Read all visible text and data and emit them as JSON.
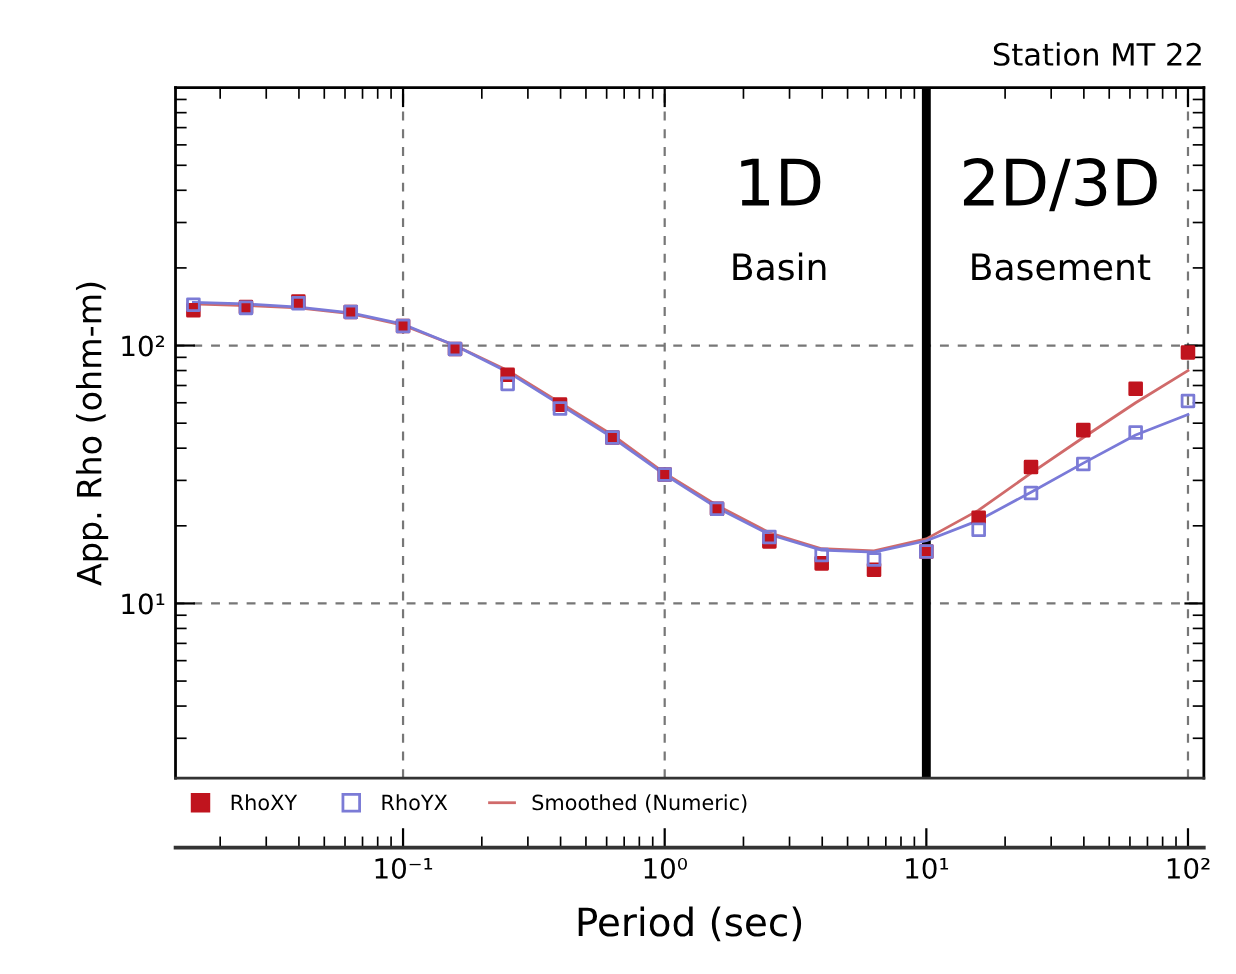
{
  "chart_data": {
    "type": "scatter",
    "title": "Station MT 22",
    "xlabel": "Period (sec)",
    "ylabel": "App. Rho (ohm-m)",
    "log": "xy",
    "grid": true,
    "legend": "bottom",
    "marker": "square",
    "xlim": [
      0.0135,
      115
    ],
    "ylim": [
      2.1,
      1000
    ],
    "xticks": [
      {
        "value": 0.1,
        "label": "10⁻¹"
      },
      {
        "value": 1,
        "label": "10⁰"
      },
      {
        "value": 10,
        "label": "10¹"
      },
      {
        "value": 100,
        "label": "10²"
      }
    ],
    "yticks": [
      {
        "value": 10,
        "label": "10¹"
      },
      {
        "value": 100,
        "label": "10²"
      }
    ],
    "x": [
      0.0158,
      0.0251,
      0.0398,
      0.0631,
      0.1,
      0.158,
      0.251,
      0.398,
      0.631,
      1,
      1.585,
      2.512,
      3.981,
      6.31,
      10,
      15.85,
      25.12,
      39.81,
      63.1,
      100
    ],
    "series": [
      {
        "name": "RhoXY",
        "color": "#c0141e",
        "values": [
          137,
          141,
          148,
          135,
          119,
          97,
          77,
          59,
          44,
          31.6,
          23.3,
          17.4,
          14.3,
          13.5,
          15.9,
          21.5,
          33.8,
          47,
          68,
          94
        ]
      },
      {
        "name": "RhoYX",
        "color": "#7b7bd6",
        "values": [
          144,
          140,
          146,
          135,
          119,
          97,
          71,
          57,
          44,
          31.6,
          23.3,
          18.1,
          15.4,
          14.8,
          15.9,
          19.3,
          26.8,
          34.7,
          46,
          61
        ]
      },
      {
        "name": "Smoothed (Numeric)",
        "type": "line",
        "color": "#d06a6a",
        "marker": "none",
        "values": [
          145,
          143,
          140,
          133,
          120,
          100,
          80,
          60,
          45,
          32,
          24,
          18.8,
          16.3,
          16.0,
          17.8,
          23,
          32,
          44,
          60,
          80
        ]
      },
      {
        "type": "line",
        "color": "#7a7ad8",
        "marker": "none",
        "values": [
          147,
          145,
          141,
          134,
          121,
          100,
          79,
          59,
          44,
          31.6,
          23.5,
          18.5,
          16.1,
          15.8,
          17.5,
          21,
          27,
          35,
          45,
          54
        ]
      }
    ],
    "ref_lines": [
      {
        "axis": "x",
        "value": 10,
        "color": "#000000",
        "line_style": "solid"
      }
    ],
    "annotations": [
      "1D",
      "Basin",
      "2D/3D",
      "Basement"
    ]
  }
}
